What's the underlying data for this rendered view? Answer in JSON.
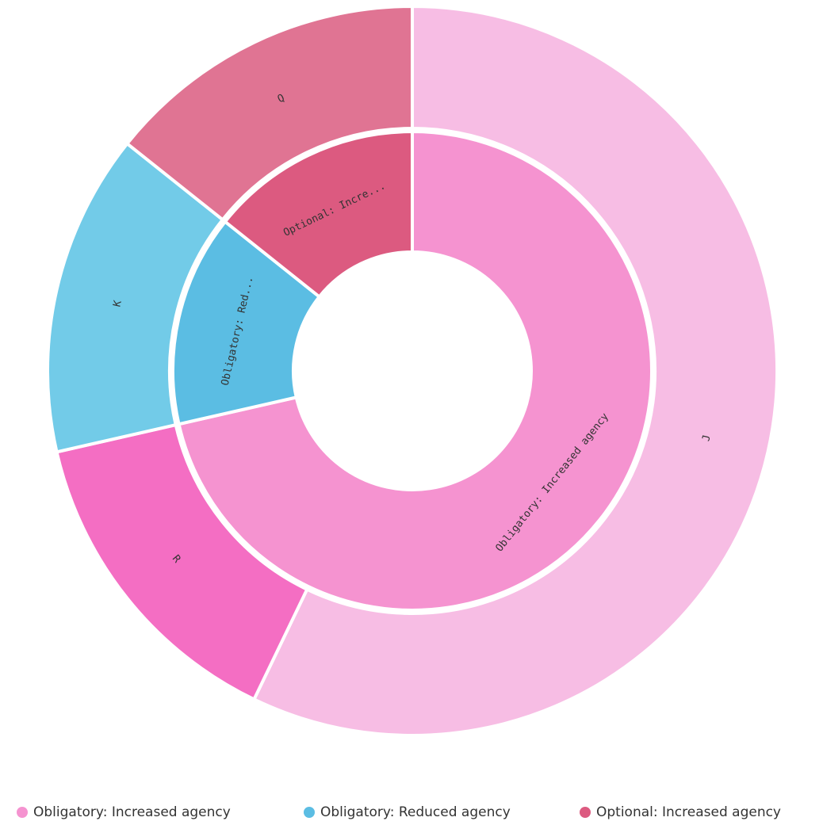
{
  "chart_data": {
    "type": "sunburst",
    "nodes": [
      {
        "name": "Obligatory: Increased agency",
        "label": "Obligatory: Increased agency",
        "value": 5,
        "color": "#f593d0",
        "children": [
          {
            "name": "J",
            "value": 4,
            "color": "#f7bde4"
          },
          {
            "name": "R",
            "value": 1,
            "color": "#f46ec3"
          }
        ]
      },
      {
        "name": "Obligatory: Reduced agency",
        "label": "Obligatory: Red...",
        "value": 1,
        "color": "#5bbde3",
        "children": [
          {
            "name": "K",
            "value": 1,
            "color": "#72cbe8"
          }
        ]
      },
      {
        "name": "Optional: Increased agency",
        "label": "Optional: Incre...",
        "value": 1,
        "color": "#dc5a80",
        "children": [
          {
            "name": "Q",
            "value": 1,
            "color": "#e07493"
          }
        ]
      }
    ]
  }
}
